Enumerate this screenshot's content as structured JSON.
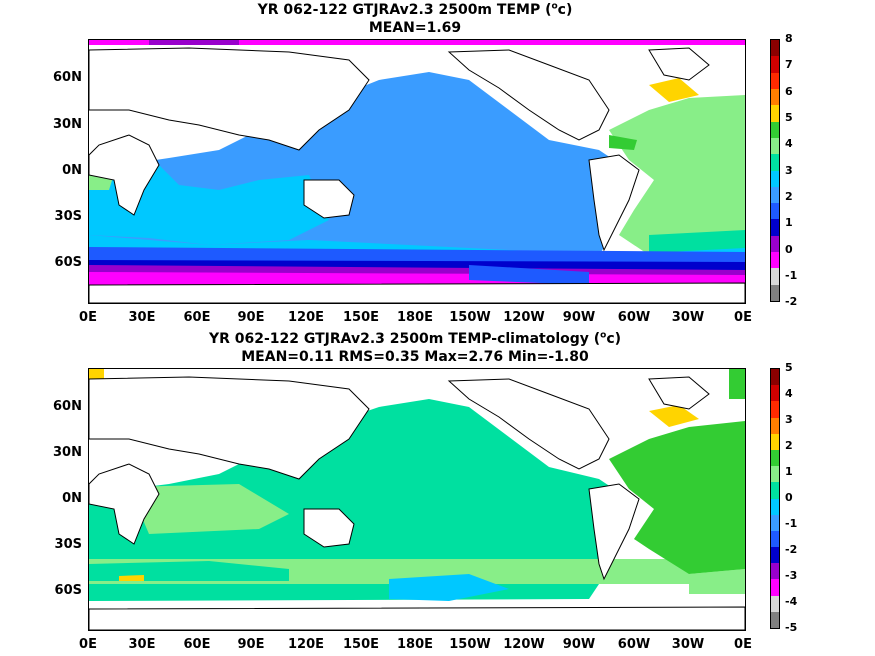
{
  "top": {
    "title_line1": "YR 062-122 GTJRAv2.3 2500m TEMP (",
    "title_unit_sup": "o",
    "title_unit_rest": "c)",
    "title_line2": "MEAN=1.69",
    "colorbar_labels": [
      "8",
      "7",
      "6",
      "5",
      "4",
      "3",
      "2",
      "1",
      "0",
      "-1",
      "-2"
    ]
  },
  "bottom": {
    "title_line1": "YR 062-122 GTJRAv2.3 2500m TEMP-climatology (",
    "title_unit_sup": "o",
    "title_unit_rest": "c)",
    "title_line2": "MEAN=0.11   RMS=0.35   Max=2.76   Min=-1.80",
    "colorbar_labels": [
      "5",
      "4",
      "3",
      "2",
      "1",
      "0",
      "-1",
      "-2",
      "-3",
      "-4",
      "-5"
    ]
  },
  "y_labels": [
    "60N",
    "30N",
    "0N",
    "30S",
    "60S"
  ],
  "x_labels": [
    "0E",
    "30E",
    "60E",
    "90E",
    "120E",
    "150E",
    "180E",
    "150W",
    "120W",
    "90W",
    "60W",
    "30W",
    "0E"
  ],
  "colorbar_colors": [
    "#8b0000",
    "#d00000",
    "#ff2a00",
    "#ff7f00",
    "#ffd400",
    "#33cc33",
    "#88ee88",
    "#00e0a0",
    "#00c8ff",
    "#3a9cff",
    "#1e5aff",
    "#0000cc",
    "#9900cc",
    "#ff00ff",
    "#d8d8d8",
    "#808080"
  ]
}
